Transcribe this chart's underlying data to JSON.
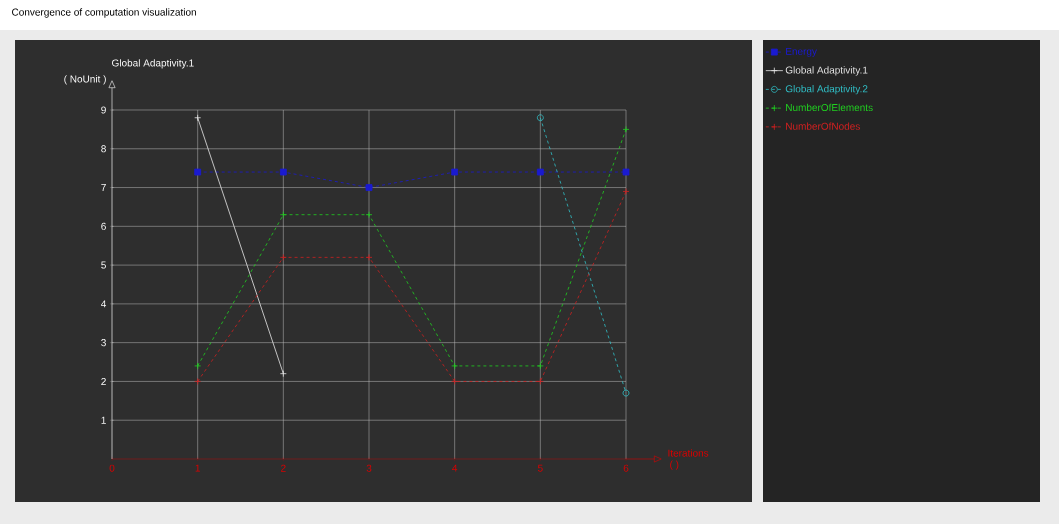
{
  "chart_data": {
    "type": "line",
    "title": "Convergence of computation visualization",
    "xlabel": "Iterations",
    "ylabel": "Global Adaptivity.1",
    "annotations": [
      "( NoUnit )",
      "( )"
    ],
    "xlim": [
      0,
      6
    ],
    "ylim": [
      0,
      9
    ],
    "xticks": [
      0,
      1,
      2,
      3,
      4,
      5,
      6
    ],
    "yticks": [
      1,
      2,
      3,
      4,
      5,
      6,
      7,
      8,
      9
    ],
    "grid": true,
    "legend": "right",
    "series": [
      {
        "name": "Energy",
        "color": "#1a1ad0",
        "x": [
          1,
          2,
          3,
          4,
          5,
          6
        ],
        "values": [
          7.4,
          7.4,
          7.0,
          7.4,
          7.4,
          7.4
        ],
        "marker": "square",
        "line_style": "dashed"
      },
      {
        "name": "Global Adaptivity.1",
        "color": "#e8e8e8",
        "x": [
          1,
          2
        ],
        "values": [
          8.8,
          2.2
        ],
        "marker": "cross",
        "line_style": "solid"
      },
      {
        "name": "Global Adaptivity.2",
        "color": "#30c0c8",
        "x": [
          5,
          6
        ],
        "values": [
          8.8,
          1.7
        ],
        "marker": "circle",
        "line_style": "dashed"
      },
      {
        "name": "NumberOfElements",
        "color": "#20d020",
        "x": [
          1,
          2,
          3,
          4,
          5,
          6
        ],
        "values": [
          2.4,
          6.3,
          6.3,
          2.4,
          2.4,
          8.5
        ],
        "marker": "cross",
        "line_style": "dashed"
      },
      {
        "name": "NumberOfNodes",
        "color": "#d02020",
        "x": [
          1,
          2,
          3,
          4,
          5,
          6
        ],
        "values": [
          2.0,
          5.2,
          5.2,
          2.0,
          2.0,
          6.9
        ],
        "marker": "cross",
        "line_style": "dashed"
      }
    ]
  }
}
